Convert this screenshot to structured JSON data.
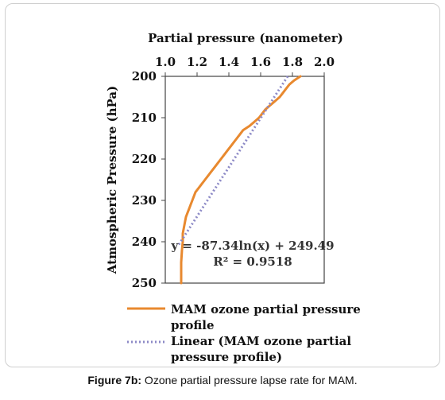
{
  "caption": {
    "label": "Figure 7b:",
    "text": " Ozone partial pressure lapse rate for MAM."
  },
  "chart_data": {
    "type": "line",
    "title": "Partial pressure (nanometer)",
    "xlabel": "Partial pressure (nanometer)",
    "ylabel": "Atmospheric Pressure (hPa)",
    "x_axis_position": "top",
    "y_axis_inverted": true,
    "xlim": [
      1.0,
      2.0
    ],
    "ylim": [
      200,
      250
    ],
    "x_ticks": [
      "1.0",
      "1.2",
      "1.4",
      "1.6",
      "1.8",
      "2.0"
    ],
    "y_ticks": [
      "200",
      "210",
      "220",
      "230",
      "240",
      "250"
    ],
    "grid": false,
    "legend_position": "bottom",
    "series": [
      {
        "name": "MAM ozone partial pressure profile",
        "color": "#E8892F",
        "style": "solid",
        "points": [
          [
            1.85,
            200
          ],
          [
            1.81,
            201
          ],
          [
            1.78,
            202
          ],
          [
            1.76,
            203
          ],
          [
            1.74,
            204
          ],
          [
            1.72,
            205
          ],
          [
            1.69,
            206
          ],
          [
            1.66,
            207
          ],
          [
            1.63,
            208
          ],
          [
            1.61,
            209
          ],
          [
            1.59,
            210
          ],
          [
            1.56,
            211
          ],
          [
            1.53,
            212
          ],
          [
            1.49,
            213
          ],
          [
            1.47,
            214
          ],
          [
            1.45,
            215
          ],
          [
            1.43,
            216
          ],
          [
            1.41,
            217
          ],
          [
            1.39,
            218
          ],
          [
            1.37,
            219
          ],
          [
            1.35,
            220
          ],
          [
            1.33,
            221
          ],
          [
            1.31,
            222
          ],
          [
            1.29,
            223
          ],
          [
            1.27,
            224
          ],
          [
            1.25,
            225
          ],
          [
            1.23,
            226
          ],
          [
            1.21,
            227
          ],
          [
            1.19,
            228
          ],
          [
            1.18,
            229
          ],
          [
            1.17,
            230
          ],
          [
            1.16,
            231
          ],
          [
            1.15,
            232
          ],
          [
            1.14,
            233
          ],
          [
            1.13,
            234
          ],
          [
            1.12,
            236
          ],
          [
            1.11,
            238
          ],
          [
            1.11,
            240
          ],
          [
            1.105,
            242
          ],
          [
            1.1,
            245
          ],
          [
            1.1,
            250
          ]
        ]
      },
      {
        "name": "Linear (MAM ozone partial pressure profile)",
        "color": "#8C89C6",
        "style": "dotted",
        "points": [
          [
            1.77,
            200
          ],
          [
            1.08,
            241
          ]
        ]
      }
    ],
    "annotations": [
      "y = -87.34ln(x) + 249.49",
      "R² = 0.9518"
    ]
  }
}
